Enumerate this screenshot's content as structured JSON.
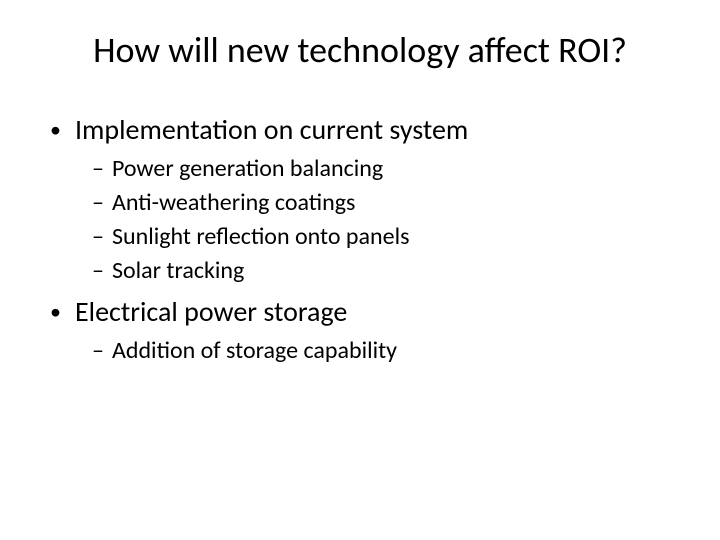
{
  "slide": {
    "title": "How will new technology affect ROI?",
    "background_color": "#ffffff",
    "text_color": "#000000",
    "title_fontsize": 36,
    "l1_fontsize": 28,
    "l2_fontsize": 24,
    "l1_marker": "•",
    "l2_marker": "–",
    "sections": [
      {
        "heading": "Implementation on current system",
        "items": [
          "Power generation balancing",
          "Anti-weathering coatings",
          "Sunlight reflection onto panels",
          "Solar tracking"
        ]
      },
      {
        "heading": "Electrical power storage",
        "items": [
          "Addition of storage capability"
        ]
      }
    ]
  }
}
